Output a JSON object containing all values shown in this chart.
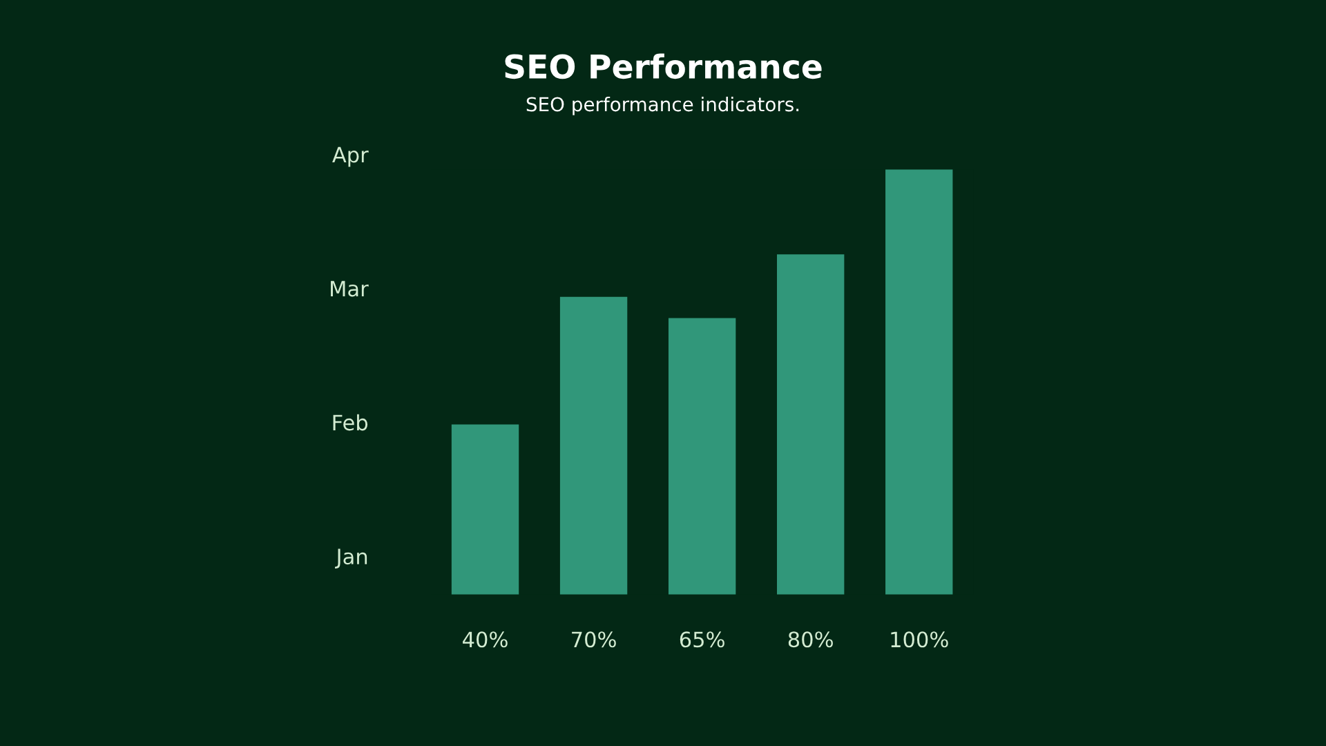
{
  "chart_data": {
    "type": "bar",
    "title": "SEO Performance",
    "subtitle": "SEO performance indicators.",
    "categories": [
      null,
      null,
      null,
      null,
      null
    ],
    "values": [
      40,
      70,
      65,
      80,
      100
    ],
    "value_labels": [
      "40%",
      "70%",
      "65%",
      "80%",
      "100%"
    ],
    "color": "#31977a",
    "annotations": [
      "Jan",
      "Feb",
      "Mar",
      "Apr"
    ],
    "grid": false
  }
}
